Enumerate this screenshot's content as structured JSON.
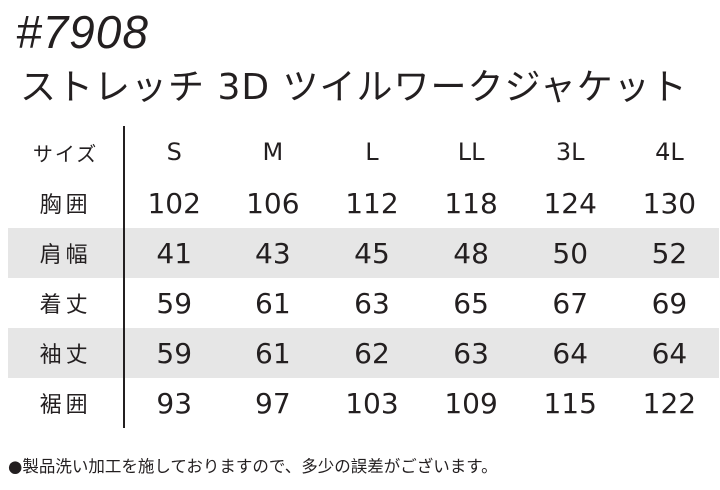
{
  "product": {
    "code": "#7908",
    "title": "ストレッチ 3D ツイルワークジャケット"
  },
  "size_table": {
    "header_label": "サイズ",
    "sizes": [
      "S",
      "M",
      "L",
      "LL",
      "3L",
      "4L"
    ],
    "rows": [
      {
        "label": "胸囲",
        "values": [
          "102",
          "106",
          "112",
          "118",
          "124",
          "130"
        ]
      },
      {
        "label": "肩幅",
        "values": [
          "41",
          "43",
          "45",
          "48",
          "50",
          "52"
        ]
      },
      {
        "label": "着丈",
        "values": [
          "59",
          "61",
          "63",
          "65",
          "67",
          "69"
        ]
      },
      {
        "label": "袖丈",
        "values": [
          "59",
          "61",
          "62",
          "63",
          "64",
          "64"
        ]
      },
      {
        "label": "裾囲",
        "values": [
          "93",
          "97",
          "103",
          "109",
          "115",
          "122"
        ]
      }
    ]
  },
  "footnote": "●製品洗い加工を施しておりますので、多少の誤差がございます。",
  "colors": {
    "text": "#231f20",
    "shaded_row": "#e6e6e6",
    "background": "#ffffff"
  }
}
